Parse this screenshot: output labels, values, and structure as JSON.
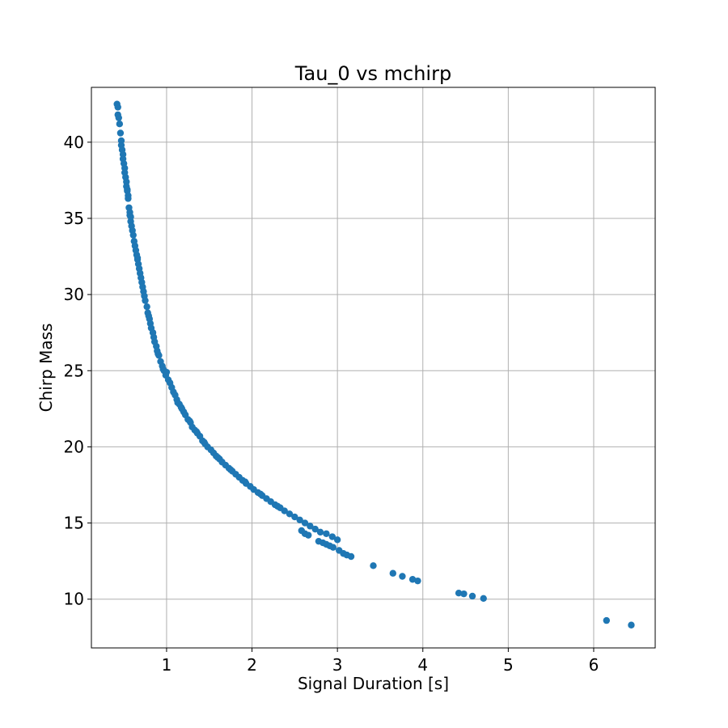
{
  "chart_data": {
    "type": "scatter",
    "title": "Tau_0 vs mchirp",
    "xlabel": "Signal Duration [s]",
    "ylabel": "Chirp Mass",
    "xlim": [
      0.12,
      6.72
    ],
    "ylim": [
      6.8,
      43.6
    ],
    "xticks": [
      1,
      2,
      3,
      4,
      5,
      6
    ],
    "yticks": [
      10,
      15,
      20,
      25,
      30,
      35,
      40
    ],
    "grid": true,
    "legend": "none",
    "colors": {
      "marker": "#1f77b4"
    },
    "series": [
      {
        "points": [
          [
            0.42,
            42.5
          ],
          [
            0.43,
            42.3
          ],
          [
            0.43,
            41.8
          ],
          [
            0.44,
            41.6
          ],
          [
            0.45,
            41.2
          ],
          [
            0.46,
            40.6
          ],
          [
            0.47,
            40.1
          ],
          [
            0.47,
            39.8
          ],
          [
            0.48,
            39.5
          ],
          [
            0.49,
            39.2
          ],
          [
            0.49,
            38.9
          ],
          [
            0.5,
            38.6
          ],
          [
            0.51,
            38.3
          ],
          [
            0.51,
            38.0
          ],
          [
            0.52,
            37.7
          ],
          [
            0.53,
            37.4
          ],
          [
            0.53,
            37.1
          ],
          [
            0.54,
            36.8
          ],
          [
            0.55,
            36.5
          ],
          [
            0.55,
            36.3
          ],
          [
            0.56,
            35.7
          ],
          [
            0.57,
            35.4
          ],
          [
            0.58,
            35.1
          ],
          [
            0.58,
            34.8
          ],
          [
            0.59,
            34.5
          ],
          [
            0.6,
            34.2
          ],
          [
            0.62,
            33.5
          ],
          [
            0.63,
            33.2
          ],
          [
            0.64,
            32.9
          ],
          [
            0.65,
            32.6
          ],
          [
            0.66,
            32.3
          ],
          [
            0.67,
            32.0
          ],
          [
            0.68,
            31.7
          ],
          [
            0.69,
            31.4
          ],
          [
            0.7,
            31.1
          ],
          [
            0.71,
            30.8
          ],
          [
            0.72,
            30.5
          ],
          [
            0.73,
            30.2
          ],
          [
            0.74,
            29.9
          ],
          [
            0.75,
            29.6
          ],
          [
            0.77,
            29.2
          ],
          [
            0.78,
            28.8
          ],
          [
            0.8,
            28.4
          ],
          [
            0.81,
            28.1
          ],
          [
            0.82,
            27.8
          ],
          [
            0.84,
            27.5
          ],
          [
            0.85,
            27.2
          ],
          [
            0.86,
            26.9
          ],
          [
            0.88,
            26.6
          ],
          [
            0.89,
            26.3
          ],
          [
            0.91,
            26.0
          ],
          [
            0.93,
            25.6
          ],
          [
            0.95,
            25.3
          ],
          [
            0.97,
            25.0
          ],
          [
            0.99,
            24.7
          ],
          [
            1.02,
            24.4
          ],
          [
            1.04,
            24.2
          ],
          [
            1.06,
            23.9
          ],
          [
            1.08,
            23.6
          ],
          [
            1.1,
            23.4
          ],
          [
            1.12,
            23.1
          ],
          [
            1.15,
            22.8
          ],
          [
            1.17,
            22.6
          ],
          [
            1.2,
            22.3
          ],
          [
            1.22,
            22.1
          ],
          [
            1.25,
            21.8
          ],
          [
            1.28,
            21.6
          ],
          [
            1.3,
            21.3
          ],
          [
            1.33,
            21.1
          ],
          [
            1.36,
            20.9
          ],
          [
            1.39,
            20.7
          ],
          [
            1.42,
            20.4
          ],
          [
            1.45,
            20.2
          ],
          [
            1.48,
            20.0
          ],
          [
            1.52,
            19.8
          ],
          [
            1.55,
            19.6
          ],
          [
            1.58,
            19.4
          ],
          [
            1.62,
            19.2
          ],
          [
            1.65,
            19.0
          ],
          [
            1.69,
            18.8
          ],
          [
            1.73,
            18.6
          ],
          [
            1.77,
            18.4
          ],
          [
            1.81,
            18.2
          ],
          [
            1.85,
            18.0
          ],
          [
            1.89,
            17.8
          ],
          [
            1.93,
            17.6
          ],
          [
            1.98,
            17.4
          ],
          [
            2.02,
            17.2
          ],
          [
            2.07,
            17.0
          ],
          [
            2.12,
            16.8
          ],
          [
            2.17,
            16.6
          ],
          [
            2.22,
            16.4
          ],
          [
            2.27,
            16.2
          ],
          [
            2.33,
            16.0
          ],
          [
            2.38,
            15.8
          ],
          [
            2.44,
            15.6
          ],
          [
            2.5,
            15.4
          ],
          [
            2.56,
            15.2
          ],
          [
            2.62,
            15.0
          ],
          [
            2.68,
            14.8
          ],
          [
            2.74,
            14.6
          ],
          [
            2.8,
            14.4
          ],
          [
            2.87,
            14.3
          ],
          [
            2.94,
            14.1
          ],
          [
            3.0,
            13.9
          ],
          [
            2.58,
            14.5
          ],
          [
            2.62,
            14.3
          ],
          [
            2.66,
            14.2
          ],
          [
            2.78,
            13.8
          ],
          [
            2.83,
            13.7
          ],
          [
            2.87,
            13.6
          ],
          [
            2.91,
            13.5
          ],
          [
            2.95,
            13.4
          ],
          [
            3.02,
            13.2
          ],
          [
            3.07,
            13.0
          ],
          [
            3.11,
            12.9
          ],
          [
            3.16,
            12.8
          ],
          [
            3.42,
            12.2
          ],
          [
            3.65,
            11.7
          ],
          [
            3.76,
            11.5
          ],
          [
            3.88,
            11.3
          ],
          [
            3.94,
            11.2
          ],
          [
            4.42,
            10.4
          ],
          [
            4.48,
            10.35
          ],
          [
            4.58,
            10.2
          ],
          [
            4.71,
            10.05
          ],
          [
            6.15,
            8.6
          ],
          [
            6.44,
            8.3
          ],
          [
            1.13,
            22.9
          ],
          [
            1.18,
            22.5
          ],
          [
            1.27,
            21.7
          ],
          [
            1.35,
            21.0
          ],
          [
            1.44,
            20.3
          ],
          [
            1.6,
            19.3
          ],
          [
            1.75,
            18.5
          ],
          [
            1.92,
            17.7
          ],
          [
            2.1,
            16.9
          ],
          [
            2.3,
            16.1
          ],
          [
            0.96,
            25.1
          ],
          [
            1.0,
            24.9
          ],
          [
            0.9,
            26.1
          ],
          [
            0.79,
            28.6
          ],
          [
            0.66,
            32.4
          ],
          [
            0.61,
            33.9
          ],
          [
            0.57,
            35.2
          ],
          [
            0.54,
            36.9
          ]
        ]
      }
    ]
  }
}
